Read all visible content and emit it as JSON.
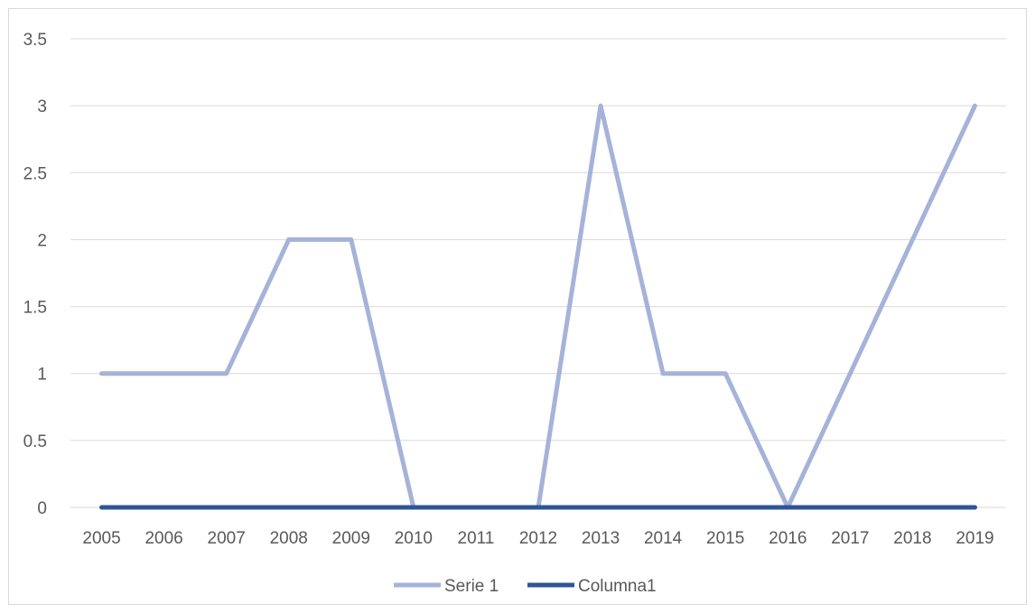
{
  "chart_data": {
    "type": "line",
    "title": "",
    "xlabel": "",
    "ylabel": "",
    "categories": [
      "2005",
      "2006",
      "2007",
      "2008",
      "2009",
      "2010",
      "2011",
      "2012",
      "2013",
      "2014",
      "2015",
      "2016",
      "2017",
      "2018",
      "2019"
    ],
    "series": [
      {
        "name": "Serie 1",
        "color": "#a5b3d9",
        "values": [
          1,
          1,
          1,
          2,
          2,
          0,
          0,
          0,
          3,
          1,
          1,
          0,
          1,
          2,
          3
        ]
      },
      {
        "name": "Columna1",
        "color": "#2f5597",
        "values": [
          0,
          0,
          0,
          0,
          0,
          0,
          0,
          0,
          0,
          0,
          0,
          0,
          0,
          0,
          0
        ]
      }
    ],
    "ylim": [
      0,
      3.5
    ],
    "yticks": [
      "0",
      "0.5",
      "1",
      "1.5",
      "2",
      "2.5",
      "3",
      "3.5"
    ],
    "grid": true,
    "legend": "bottom"
  }
}
